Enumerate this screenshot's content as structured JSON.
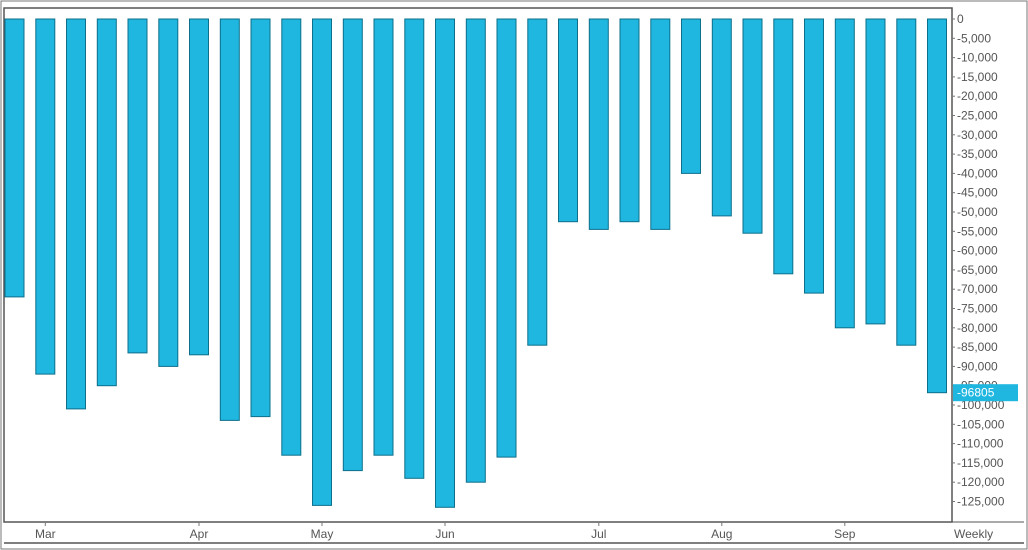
{
  "chart_data": {
    "type": "bar",
    "x": [
      1,
      2,
      3,
      4,
      5,
      6,
      7,
      8,
      9,
      10,
      11,
      12,
      13,
      14,
      15,
      16,
      17,
      18,
      19,
      20,
      21,
      22,
      23,
      24,
      25,
      26,
      27,
      28,
      29,
      30,
      31
    ],
    "values": [
      -72000,
      -92000,
      -101000,
      -95000,
      -86500,
      -90000,
      -87000,
      -104000,
      -103000,
      -113000,
      -126000,
      -117000,
      -113000,
      -119000,
      -126500,
      -120000,
      -113500,
      -84500,
      -52500,
      -54500,
      -52500,
      -54500,
      -40000,
      -51000,
      -55500,
      -66000,
      -71000,
      -80000,
      -79000,
      -84500,
      -96805
    ],
    "ylim": [
      -129000,
      1000
    ],
    "y_ticks": [
      "0",
      "-5,000",
      "-10,000",
      "-15,000",
      "-20,000",
      "-25,000",
      "-30,000",
      "-35,000",
      "-40,000",
      "-45,000",
      "-50,000",
      "-55,000",
      "-60,000",
      "-65,000",
      "-70,000",
      "-75,000",
      "-80,000",
      "-85,000",
      "-90,000",
      "-95,000",
      "-100,000",
      "-105,000",
      "-110,000",
      "-115,000",
      "-120,000",
      "-125,000"
    ],
    "x_ticks": [
      {
        "label": "Mar",
        "at": 2
      },
      {
        "label": "Apr",
        "at": 7
      },
      {
        "label": "May",
        "at": 11
      },
      {
        "label": "Jun",
        "at": 15
      },
      {
        "label": "Jul",
        "at": 20
      },
      {
        "label": "Aug",
        "at": 24
      },
      {
        "label": "Sep",
        "at": 28
      }
    ],
    "period_label": "Weekly",
    "last_value_label": "-96805",
    "axis_position": "right",
    "grid": false,
    "colors": {
      "bar": "#1fb6e0",
      "bar_edge": "#0e6f8a",
      "label_bg": "#1fb6e0",
      "frame": "#555555"
    }
  }
}
